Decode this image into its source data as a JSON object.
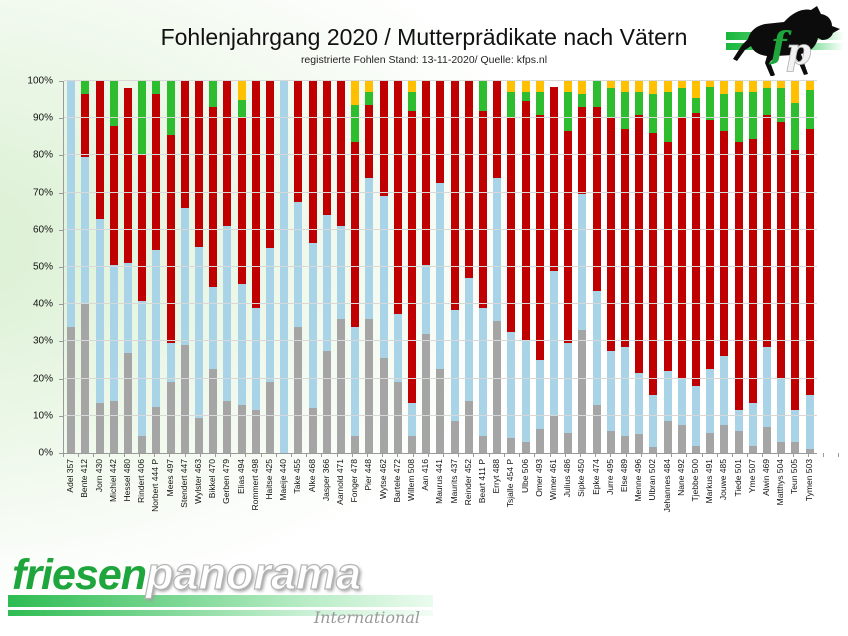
{
  "header": {
    "title": "Fohlenjahrgang 2020 / Mutterprädikate nach Vätern",
    "subtitle": "registrierte Fohlen Stand: 13-11-2020/ Quelle: kfps.nl"
  },
  "brand_logo": {
    "part1": "friesen",
    "part2": "panorama",
    "part3": "International"
  },
  "colors": {
    "gray": "#A5A5A5",
    "lightblue": "#A9D4E7",
    "red": "#C00000",
    "green": "#2EBD2E",
    "orange": "#FFC000",
    "grid": "#D8D8D8",
    "axis": "#9A9A9A",
    "logo_green": "#1EA53C"
  },
  "chart_data": {
    "type": "bar",
    "stacked": true,
    "percent": true,
    "title": "Fohlenjahrgang 2020 / Mutterprädikate nach Vätern",
    "subtitle": "registrierte Fohlen Stand: 13-11-2020/ Quelle: kfps.nl",
    "xlabel": "",
    "ylabel": "",
    "ylim": [
      0,
      100
    ],
    "yticks": [
      "0%",
      "10%",
      "20%",
      "30%",
      "40%",
      "50%",
      "60%",
      "70%",
      "80%",
      "90%",
      "100%"
    ],
    "grid": true,
    "legend": "none",
    "categories": [
      "Adel 357",
      "Bente 412",
      "Jorn 430",
      "Michiel 442",
      "Hessel 480",
      "Rindert 406",
      "Norbert 444 P",
      "Mees 497",
      "Stendert 447",
      "Wylster 463",
      "Bikkel 470",
      "Gerben 479",
      "Elias 494",
      "Rommert 498",
      "Haitse 425",
      "Maeije 440",
      "Take 455",
      "Alke 468",
      "Jasper 366",
      "Aarnold 471",
      "Fonger 478",
      "Pier 448",
      "Wytse 462",
      "Bartele 472",
      "Willem 508",
      "Aan 416",
      "Maurus 441",
      "Maurits 437",
      "Reinder 452",
      "Beart 411 P",
      "Erryt 488",
      "Tsjalle 454 P",
      "Ulbe 506",
      "Omer 493",
      "Wimer 461",
      "Julius 486",
      "Sipke 450",
      "Epke 474",
      "Jurre 495",
      "Else 489",
      "Menne 496",
      "Ulbran 502",
      "Jehannes 484",
      "Nane 492",
      "Tjebbe 500",
      "Markus 491",
      "Jouwe 485",
      "Tiede 501",
      "Yme 507",
      "Alwin 469",
      "Matthys 504",
      "Teun 505",
      "Tymen 503"
    ],
    "series": [
      {
        "name": "gray",
        "color": "#A5A5A5",
        "values": [
          34,
          40,
          13.5,
          14,
          27,
          4.5,
          12.5,
          19,
          29,
          9.5,
          22.5,
          14,
          13,
          11.5,
          19,
          0,
          34,
          12,
          27.5,
          36,
          4.5,
          36,
          25.5,
          19,
          4.5,
          32,
          22.5,
          8.5,
          14,
          4.5,
          35.5,
          4,
          3,
          6.5,
          10,
          5.5,
          33,
          13,
          6,
          4.5,
          5,
          1.5,
          8.5,
          7.5,
          2,
          5.5,
          7.5,
          6,
          2,
          7,
          3,
          3,
          1
        ]
      },
      {
        "name": "lightblue",
        "color": "#A9D4E7",
        "values": [
          66,
          39.5,
          49.5,
          36.5,
          24,
          36.5,
          42,
          10.5,
          37,
          46,
          22,
          47,
          32.5,
          27.5,
          36,
          100,
          33.5,
          44.5,
          36.5,
          25,
          29.5,
          38,
          43.5,
          18.5,
          9,
          18.5,
          50,
          30,
          33,
          34.5,
          38.5,
          28.5,
          27.5,
          18.5,
          39,
          24,
          36.5,
          30.5,
          21.5,
          24,
          16.5,
          14,
          13.5,
          12.5,
          16,
          17,
          18.5,
          5.5,
          11.5,
          21.5,
          17,
          8.5,
          14.5
        ]
      },
      {
        "name": "red",
        "color": "#C00000",
        "values": [
          0,
          17,
          37,
          37.5,
          47,
          39,
          42,
          56,
          34,
          44.5,
          48.5,
          39,
          44.5,
          61,
          45,
          0,
          32.5,
          43.5,
          36,
          39,
          49.5,
          19.5,
          31,
          62.5,
          78.5,
          49.5,
          27.5,
          61.5,
          53,
          53,
          26,
          57.5,
          64,
          66,
          49.5,
          57,
          23.5,
          49.5,
          62.5,
          58.5,
          69.5,
          70.5,
          61.5,
          70,
          73.5,
          67,
          60.5,
          72,
          71,
          62.5,
          69,
          70,
          71.5
        ]
      },
      {
        "name": "green",
        "color": "#2EBD2E",
        "values": [
          0,
          3.5,
          0,
          12,
          0,
          20,
          3.5,
          14.5,
          0,
          0,
          7,
          0,
          5,
          0,
          0,
          0,
          0,
          0,
          0,
          0,
          10,
          3.5,
          0,
          0,
          5,
          0,
          0,
          0,
          0,
          8,
          0,
          7,
          2.5,
          6,
          0,
          10.5,
          3.5,
          7,
          8,
          10,
          6,
          10.5,
          13.5,
          8,
          4,
          9,
          10,
          13.5,
          12.5,
          7,
          9,
          12.5,
          10.5
        ]
      },
      {
        "name": "orange",
        "color": "#FFC000",
        "values": [
          0,
          0,
          0,
          0,
          0,
          0,
          0,
          0,
          0,
          0,
          0,
          0,
          5,
          0,
          0,
          0,
          0,
          0,
          0,
          0,
          6.5,
          3,
          0,
          0,
          3,
          0,
          0,
          0,
          0,
          0,
          0,
          3,
          3,
          3,
          0,
          3,
          3.5,
          0,
          2,
          3,
          3,
          3.5,
          3,
          2,
          4.5,
          1.5,
          3.5,
          3,
          3,
          2,
          2,
          6,
          2.5
        ]
      }
    ]
  }
}
